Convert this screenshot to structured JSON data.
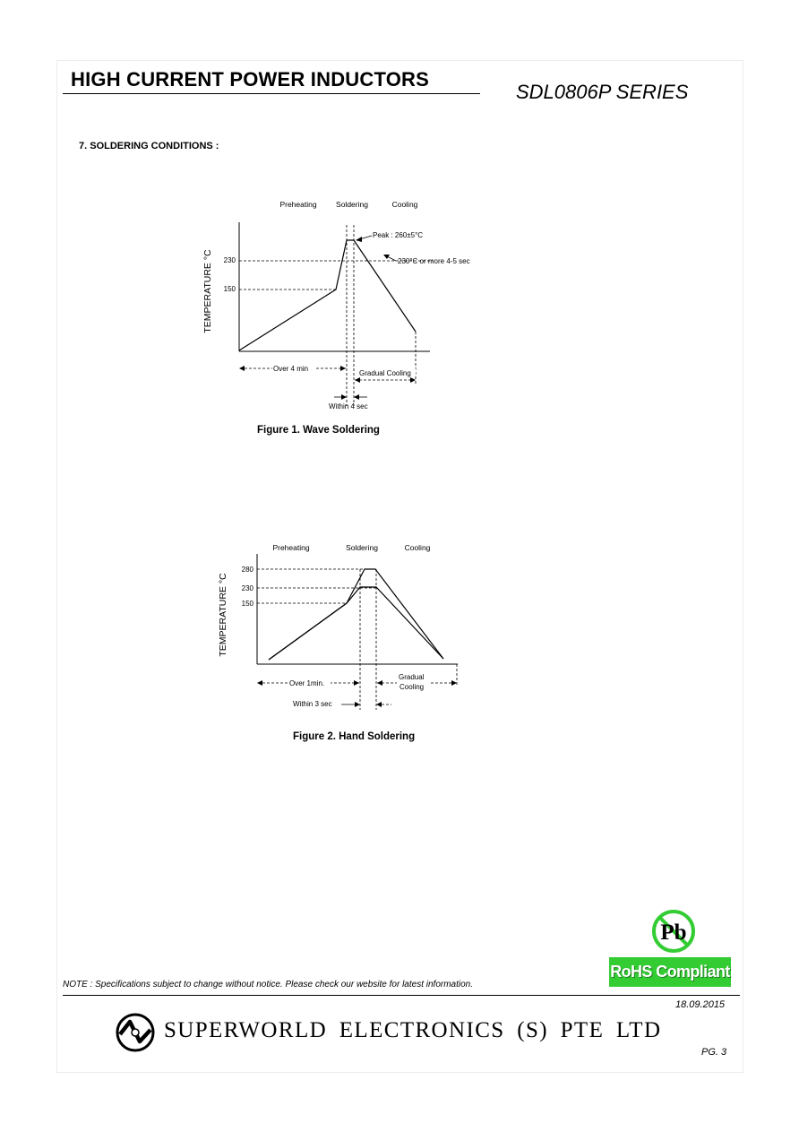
{
  "header": {
    "title": "HIGH CURRENT POWER INDUCTORS",
    "series": "SDL0806P SERIES"
  },
  "section_title": "7. SOLDERING CONDITIONS :",
  "figure1": {
    "caption": "Figure 1. Wave Soldering",
    "phases": [
      "Preheating",
      "Soldering",
      "Cooling"
    ],
    "ylabel": "TEMPERATURE °C",
    "ticks": [
      "230",
      "150"
    ],
    "peak_label": "Peak : 260±5°C",
    "dwell_label": "230°C or more 4-5 sec",
    "over_label": "Over 4 min",
    "gradual_label": "Gradual Cooling",
    "within_label": "Within 4 sec"
  },
  "figure2": {
    "caption": "Figure 2. Hand Soldering",
    "phases": [
      "Preheating",
      "Soldering",
      "Cooling"
    ],
    "ylabel": "TEMPERATURE °C",
    "ticks": [
      "280",
      "230",
      "150"
    ],
    "over_label": "Over 1min.",
    "gradual_label_1": "Gradual",
    "gradual_label_2": "Cooling",
    "within_label": "Within 3 sec"
  },
  "badges": {
    "pb": "Pb",
    "rohs": "RoHS Compliant"
  },
  "footer": {
    "note": "NOTE : Specifications subject to change without notice. Please check our website for latest information.",
    "date": "18.09.2015",
    "company": "SUPERWORLD ELECTRONICS (S) PTE LTD",
    "page": "PG. 3"
  }
}
